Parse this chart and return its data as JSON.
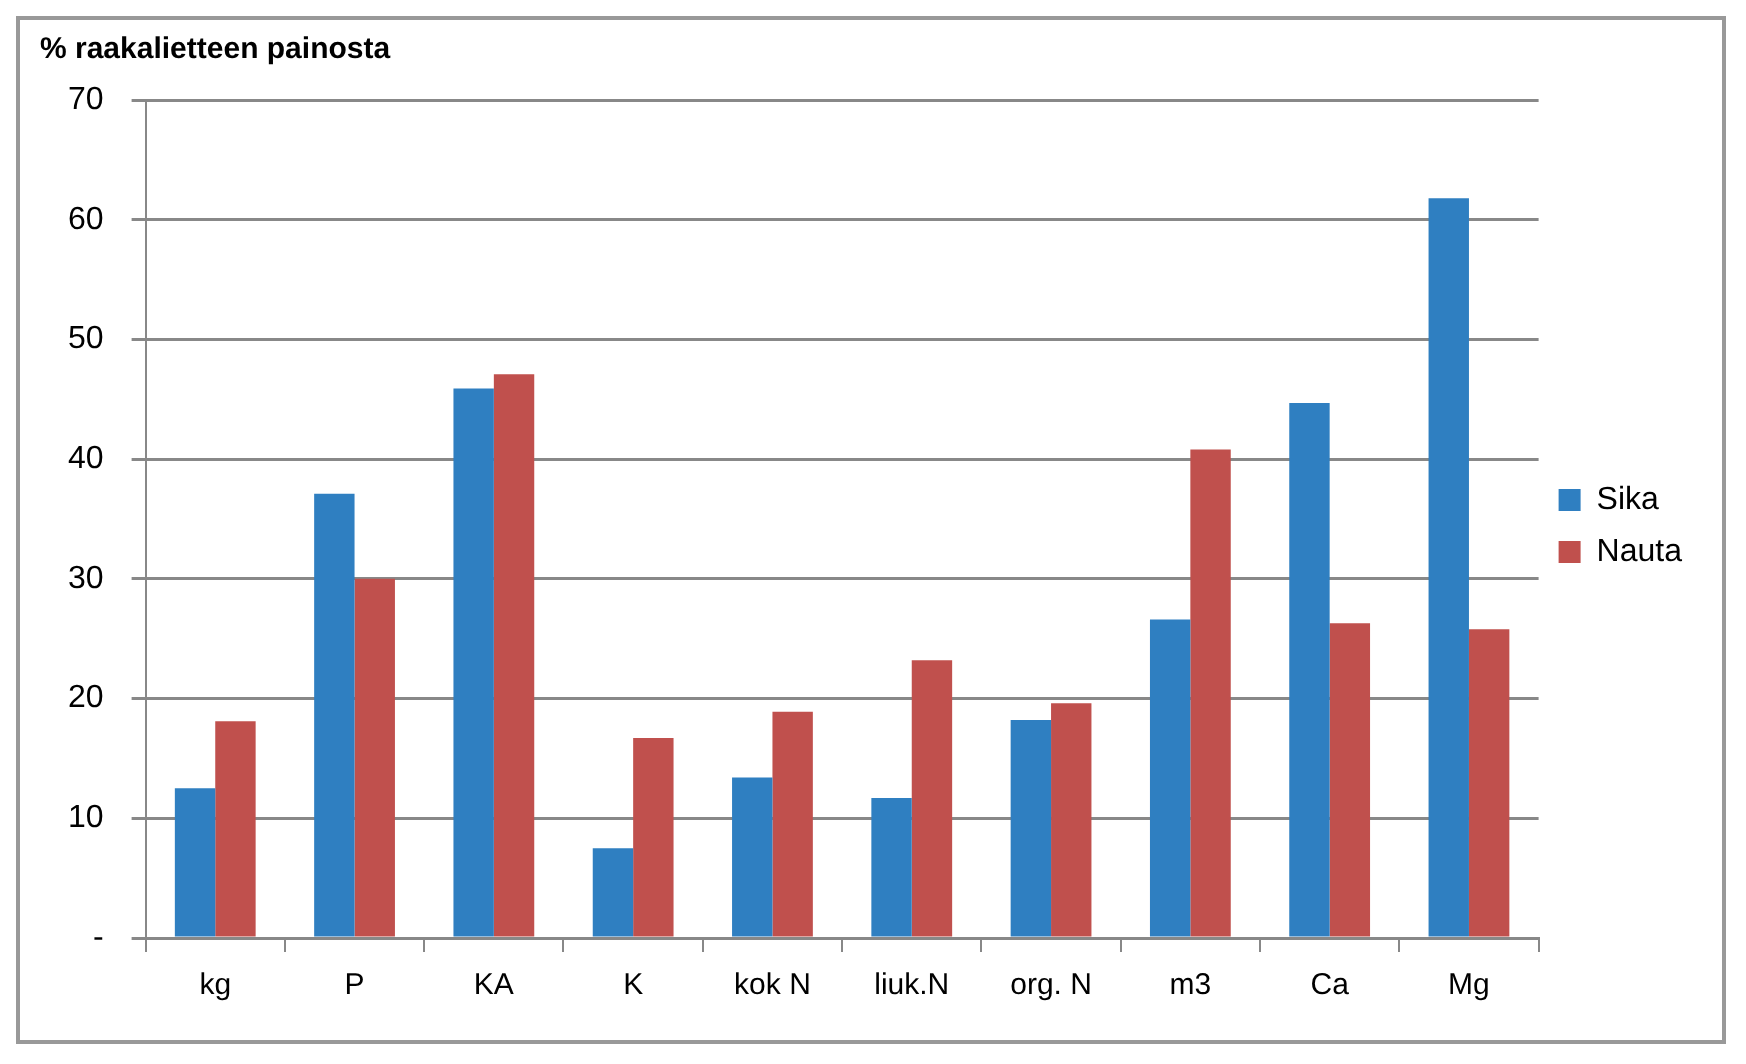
{
  "chart_data": {
    "type": "bar",
    "title": "% raakalietteen painosta",
    "categories": [
      "kg",
      "P",
      "KA",
      "K",
      "kok N",
      "liuk.N",
      "org. N",
      "m3",
      "Ca",
      "Mg"
    ],
    "series": [
      {
        "name": "Sika",
        "color": "#2f7fc1",
        "values": [
          12.5,
          37.1,
          45.9,
          7.5,
          13.4,
          11.7,
          18.2,
          26.6,
          44.7,
          61.8
        ]
      },
      {
        "name": "Nauta",
        "color": "#c0504d",
        "values": [
          18.1,
          30.0,
          47.1,
          16.7,
          18.9,
          23.2,
          19.6,
          40.8,
          26.3,
          25.8
        ]
      }
    ],
    "ylim": [
      0,
      70
    ],
    "yticks": [
      {
        "value": 0,
        "label": "-"
      },
      10,
      20,
      30,
      40,
      50,
      60,
      70
    ],
    "grid": "y",
    "legend": "right"
  }
}
